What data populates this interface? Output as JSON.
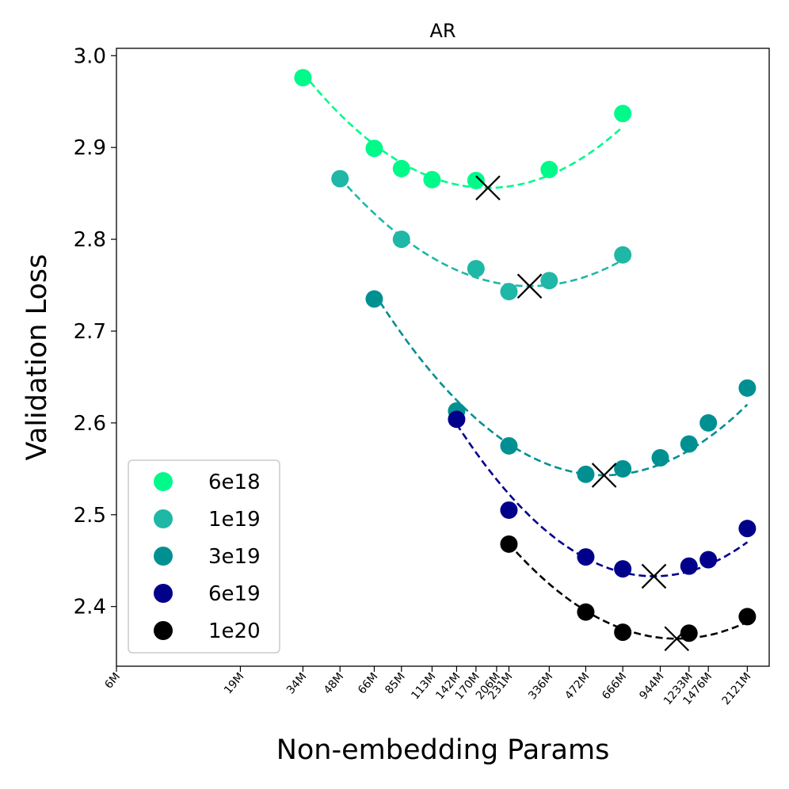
{
  "chart_data": {
    "type": "scatter",
    "title": "AR",
    "xlabel": "Non-embedding Params",
    "ylabel": "Validation Loss",
    "xscale": "log",
    "xlim": [
      6,
      2600
    ],
    "ylim": [
      2.335,
      3.008
    ],
    "x_ticks": [
      {
        "value": 6,
        "label": "6M"
      },
      {
        "value": 19,
        "label": "19M"
      },
      {
        "value": 34,
        "label": "34M"
      },
      {
        "value": 48,
        "label": "48M"
      },
      {
        "value": 66,
        "label": "66M"
      },
      {
        "value": 85,
        "label": "85M"
      },
      {
        "value": 113,
        "label": "113M"
      },
      {
        "value": 142,
        "label": "142M"
      },
      {
        "value": 170,
        "label": "170M"
      },
      {
        "value": 206,
        "label": "206M"
      },
      {
        "value": 231,
        "label": "231M"
      },
      {
        "value": 336,
        "label": "336M"
      },
      {
        "value": 472,
        "label": "472M"
      },
      {
        "value": 666,
        "label": "666M"
      },
      {
        "value": 944,
        "label": "944M"
      },
      {
        "value": 1233,
        "label": "1233M"
      },
      {
        "value": 1476,
        "label": "1476M"
      },
      {
        "value": 2121,
        "label": "2121M"
      }
    ],
    "y_ticks": [
      {
        "value": 2.4,
        "label": "2.4"
      },
      {
        "value": 2.5,
        "label": "2.5"
      },
      {
        "value": 2.6,
        "label": "2.6"
      },
      {
        "value": 2.7,
        "label": "2.7"
      },
      {
        "value": 2.8,
        "label": "2.8"
      },
      {
        "value": 2.9,
        "label": "2.9"
      },
      {
        "value": 3.0,
        "label": "3.0"
      }
    ],
    "legend_position": "lower-left",
    "series": [
      {
        "name": "6e18",
        "color": "#00fa8a",
        "points": [
          [
            34,
            2.976
          ],
          [
            66,
            2.899
          ],
          [
            85,
            2.877
          ],
          [
            113,
            2.865
          ],
          [
            170,
            2.864
          ],
          [
            336,
            2.876
          ],
          [
            666,
            2.937
          ]
        ],
        "fit_range": [
          34,
          666
        ],
        "optimum": [
          190,
          2.856
        ]
      },
      {
        "name": "1e19",
        "color": "#1fb7a6",
        "points": [
          [
            48,
            2.866
          ],
          [
            85,
            2.8
          ],
          [
            170,
            2.768
          ],
          [
            231,
            2.743
          ],
          [
            336,
            2.755
          ],
          [
            666,
            2.783
          ]
        ],
        "fit_range": [
          48,
          666
        ],
        "optimum": [
          280,
          2.749
        ]
      },
      {
        "name": "3e19",
        "color": "#009091",
        "points": [
          [
            66,
            2.735
          ],
          [
            142,
            2.613
          ],
          [
            231,
            2.575
          ],
          [
            472,
            2.544
          ],
          [
            666,
            2.55
          ],
          [
            944,
            2.562
          ],
          [
            1233,
            2.577
          ],
          [
            1476,
            2.6
          ],
          [
            2121,
            2.638
          ]
        ],
        "fit_range": [
          66,
          2121
        ],
        "optimum": [
          560,
          2.543
        ]
      },
      {
        "name": "6e19",
        "color": "#00008b",
        "points": [
          [
            142,
            2.604
          ],
          [
            231,
            2.505
          ],
          [
            472,
            2.454
          ],
          [
            666,
            2.441
          ],
          [
            1233,
            2.444
          ],
          [
            1476,
            2.451
          ],
          [
            2121,
            2.485
          ]
        ],
        "fit_range": [
          142,
          2121
        ],
        "optimum": [
          890,
          2.433
        ]
      },
      {
        "name": "1e20",
        "color": "#000000",
        "points": [
          [
            231,
            2.468
          ],
          [
            472,
            2.394
          ],
          [
            666,
            2.372
          ],
          [
            1233,
            2.371
          ],
          [
            2121,
            2.389
          ]
        ],
        "fit_range": [
          231,
          2121
        ],
        "optimum": [
          1100,
          2.365
        ]
      }
    ]
  }
}
